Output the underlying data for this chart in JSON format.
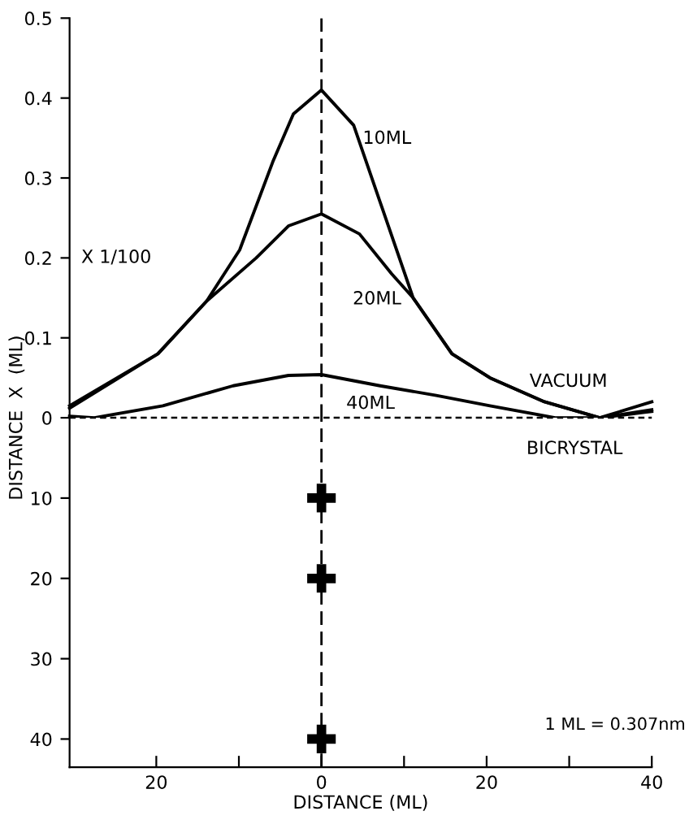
{
  "chart_data": [
    {
      "type": "line",
      "tick_labels": "y",
      "xlim": [
        -30.5,
        40
      ],
      "ylim": [
        0,
        0.5
      ],
      "yticks": [
        0,
        0.1,
        0.2,
        0.3,
        0.4,
        0.5
      ],
      "grid": false,
      "legend": false,
      "marker": "none",
      "line_style": "solid",
      "series": [
        {
          "name": "10ML",
          "color": "#000000",
          "x": [
            -30.5,
            -19.8,
            -13.9,
            -9.9,
            -5.9,
            -3.4,
            0,
            3.9,
            7.1,
            11.1,
            15.8,
            20.4,
            27,
            33.7,
            40
          ],
          "values": [
            0.015,
            0.08,
            0.146,
            0.21,
            0.32,
            0.38,
            0.41,
            0.366,
            0.27,
            0.15,
            0.08,
            0.05,
            0.02,
            0.0,
            0.02
          ]
        },
        {
          "name": "20ML",
          "color": "#000000",
          "x": [
            -30.5,
            -19.8,
            -13.9,
            -7.9,
            -4,
            0,
            4.6,
            8.5,
            11.1,
            15.8,
            20.4,
            27,
            33.7,
            40
          ],
          "values": [
            0.012,
            0.08,
            0.146,
            0.2,
            0.24,
            0.255,
            0.23,
            0.18,
            0.15,
            0.08,
            0.05,
            0.02,
            0.0,
            0.01
          ]
        },
        {
          "name": "40ML",
          "color": "#000000",
          "x": [
            -30.5,
            -27.5,
            -19.2,
            -10.7,
            -4,
            0,
            7.1,
            13.9,
            20.4,
            28.3,
            33.7,
            40
          ],
          "values": [
            0.002,
            0.0,
            0.015,
            0.04,
            0.053,
            0.054,
            0.04,
            0.028,
            0.015,
            0.0,
            0.0,
            0.008
          ]
        }
      ],
      "ref_lines": [
        {
          "axis": "x",
          "value": 0,
          "line_style": "dashed",
          "color": "#000000"
        }
      ],
      "ylabel": "DISTANCE  X  (ML)",
      "annotations": [
        "VACUUM",
        "X 1/100"
      ]
    },
    {
      "type": "scatter",
      "xlim": [
        -30.5,
        40
      ],
      "xticks": [
        {
          "value": -20,
          "label": "20"
        },
        {
          "value": -10,
          "label": null
        },
        0,
        {
          "value": 10,
          "label": null
        },
        20,
        {
          "value": 30,
          "label": null
        },
        40
      ],
      "ylim": [
        43.5,
        0
      ],
      "yticks": [
        10,
        20,
        30,
        40
      ],
      "grid": false,
      "legend": false,
      "marker": "cross",
      "series": [
        {
          "color": "#000000",
          "x": [
            0,
            0,
            0
          ],
          "values": [
            10,
            20,
            40
          ]
        }
      ],
      "ref_lines": [
        {
          "axis": "x",
          "value": 0,
          "line_style": "dashed",
          "color": "#000000"
        },
        {
          "axis": "y",
          "value": 0,
          "line_style": "dashed",
          "color": "#000000",
          "label": "BICRYSTAL"
        }
      ],
      "xlabel": "DISTANCE (ML)",
      "annotations": [
        "1 ML = 0.307nm"
      ]
    }
  ]
}
